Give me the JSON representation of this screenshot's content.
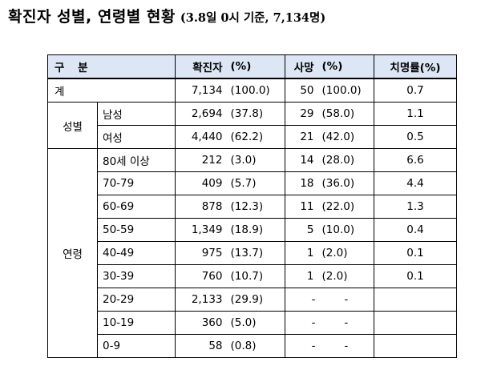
{
  "title": {
    "main": "확진자 성별, 연령별 현황",
    "sub": "(3.8일 0시 기준, 7,134명)"
  },
  "header": {
    "category": "구 분",
    "confirmed": "확진자",
    "confirmed_pct": "(%)",
    "deaths": "사망",
    "deaths_pct": "(%)",
    "fatality": "치명률(%)"
  },
  "total": {
    "label": "계",
    "confirmed": "7,134",
    "confirmed_pct": "(100.0)",
    "deaths": "50",
    "deaths_pct": "(100.0)",
    "fatality": "0.7"
  },
  "gender": {
    "group_label": "성별",
    "rows": [
      {
        "label": "남성",
        "confirmed": "2,694",
        "confirmed_pct": "(37.8)",
        "deaths": "29",
        "deaths_pct": "(58.0)",
        "fatality": "1.1"
      },
      {
        "label": "여성",
        "confirmed": "4,440",
        "confirmed_pct": "(62.2)",
        "deaths": "21",
        "deaths_pct": "(42.0)",
        "fatality": "0.5"
      }
    ]
  },
  "age": {
    "group_label": "연령",
    "rows": [
      {
        "label": "80세 이상",
        "confirmed": "212",
        "confirmed_pct": "(3.0)",
        "deaths": "14",
        "deaths_pct": "(28.0)",
        "fatality": "6.6"
      },
      {
        "label": "70-79",
        "confirmed": "409",
        "confirmed_pct": "(5.7)",
        "deaths": "18",
        "deaths_pct": "(36.0)",
        "fatality": "4.4"
      },
      {
        "label": "60-69",
        "confirmed": "878",
        "confirmed_pct": "(12.3)",
        "deaths": "11",
        "deaths_pct": "(22.0)",
        "fatality": "1.3"
      },
      {
        "label": "50-59",
        "confirmed": "1,349",
        "confirmed_pct": "(18.9)",
        "deaths": "5",
        "deaths_pct": "(10.0)",
        "fatality": "0.4"
      },
      {
        "label": "40-49",
        "confirmed": "975",
        "confirmed_pct": "(13.7)",
        "deaths": "1",
        "deaths_pct": "(2.0)",
        "fatality": "0.1"
      },
      {
        "label": "30-39",
        "confirmed": "760",
        "confirmed_pct": "(10.7)",
        "deaths": "1",
        "deaths_pct": "(2.0)",
        "fatality": "0.1"
      },
      {
        "label": "20-29",
        "confirmed": "2,133",
        "confirmed_pct": "(29.9)",
        "deaths": "-",
        "deaths_pct": "-",
        "fatality": ""
      },
      {
        "label": "10-19",
        "confirmed": "360",
        "confirmed_pct": "(5.0)",
        "deaths": "-",
        "deaths_pct": "-",
        "fatality": ""
      },
      {
        "label": "0-9",
        "confirmed": "58",
        "confirmed_pct": "(0.8)",
        "deaths": "-",
        "deaths_pct": "-",
        "fatality": ""
      }
    ]
  }
}
